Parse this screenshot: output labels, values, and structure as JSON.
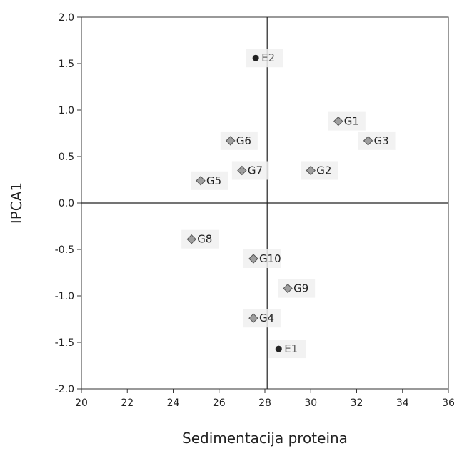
{
  "chart_data": {
    "type": "scatter",
    "title": "",
    "xlabel": "Sedimentacija proteina",
    "ylabel": "IPCA1",
    "xlim": [
      20,
      36
    ],
    "ylim": [
      -2.0,
      2.0
    ],
    "xticks": [
      "20",
      "22",
      "24",
      "26",
      "28",
      "30",
      "32",
      "34",
      "36"
    ],
    "yticks": [
      "2.0",
      "1.5",
      "1.0",
      "0.5",
      "0.0",
      "-0.5",
      "-1.0",
      "-1.5",
      "-2.0"
    ],
    "xref": 28.1,
    "yref": 0.0,
    "grid": false,
    "series": [
      {
        "kind": "genotype",
        "marker": "diamond",
        "color": "#9e9e9e",
        "points": [
          {
            "label": "G1",
            "x": 31.2,
            "y": 0.88
          },
          {
            "label": "G2",
            "x": 30.0,
            "y": 0.35
          },
          {
            "label": "G3",
            "x": 32.5,
            "y": 0.67
          },
          {
            "label": "G4",
            "x": 27.5,
            "y": -1.24
          },
          {
            "label": "G5",
            "x": 25.2,
            "y": 0.24
          },
          {
            "label": "G6",
            "x": 26.5,
            "y": 0.67
          },
          {
            "label": "G7",
            "x": 27.0,
            "y": 0.35
          },
          {
            "label": "G8",
            "x": 24.8,
            "y": -0.39
          },
          {
            "label": "G9",
            "x": 29.0,
            "y": -0.92
          },
          {
            "label": "G10",
            "x": 27.5,
            "y": -0.6
          }
        ]
      },
      {
        "kind": "environment",
        "marker": "circle",
        "color": "#222222",
        "points": [
          {
            "label": "E1",
            "x": 28.6,
            "y": -1.57
          },
          {
            "label": "E2",
            "x": 27.6,
            "y": 1.56
          }
        ]
      }
    ]
  }
}
